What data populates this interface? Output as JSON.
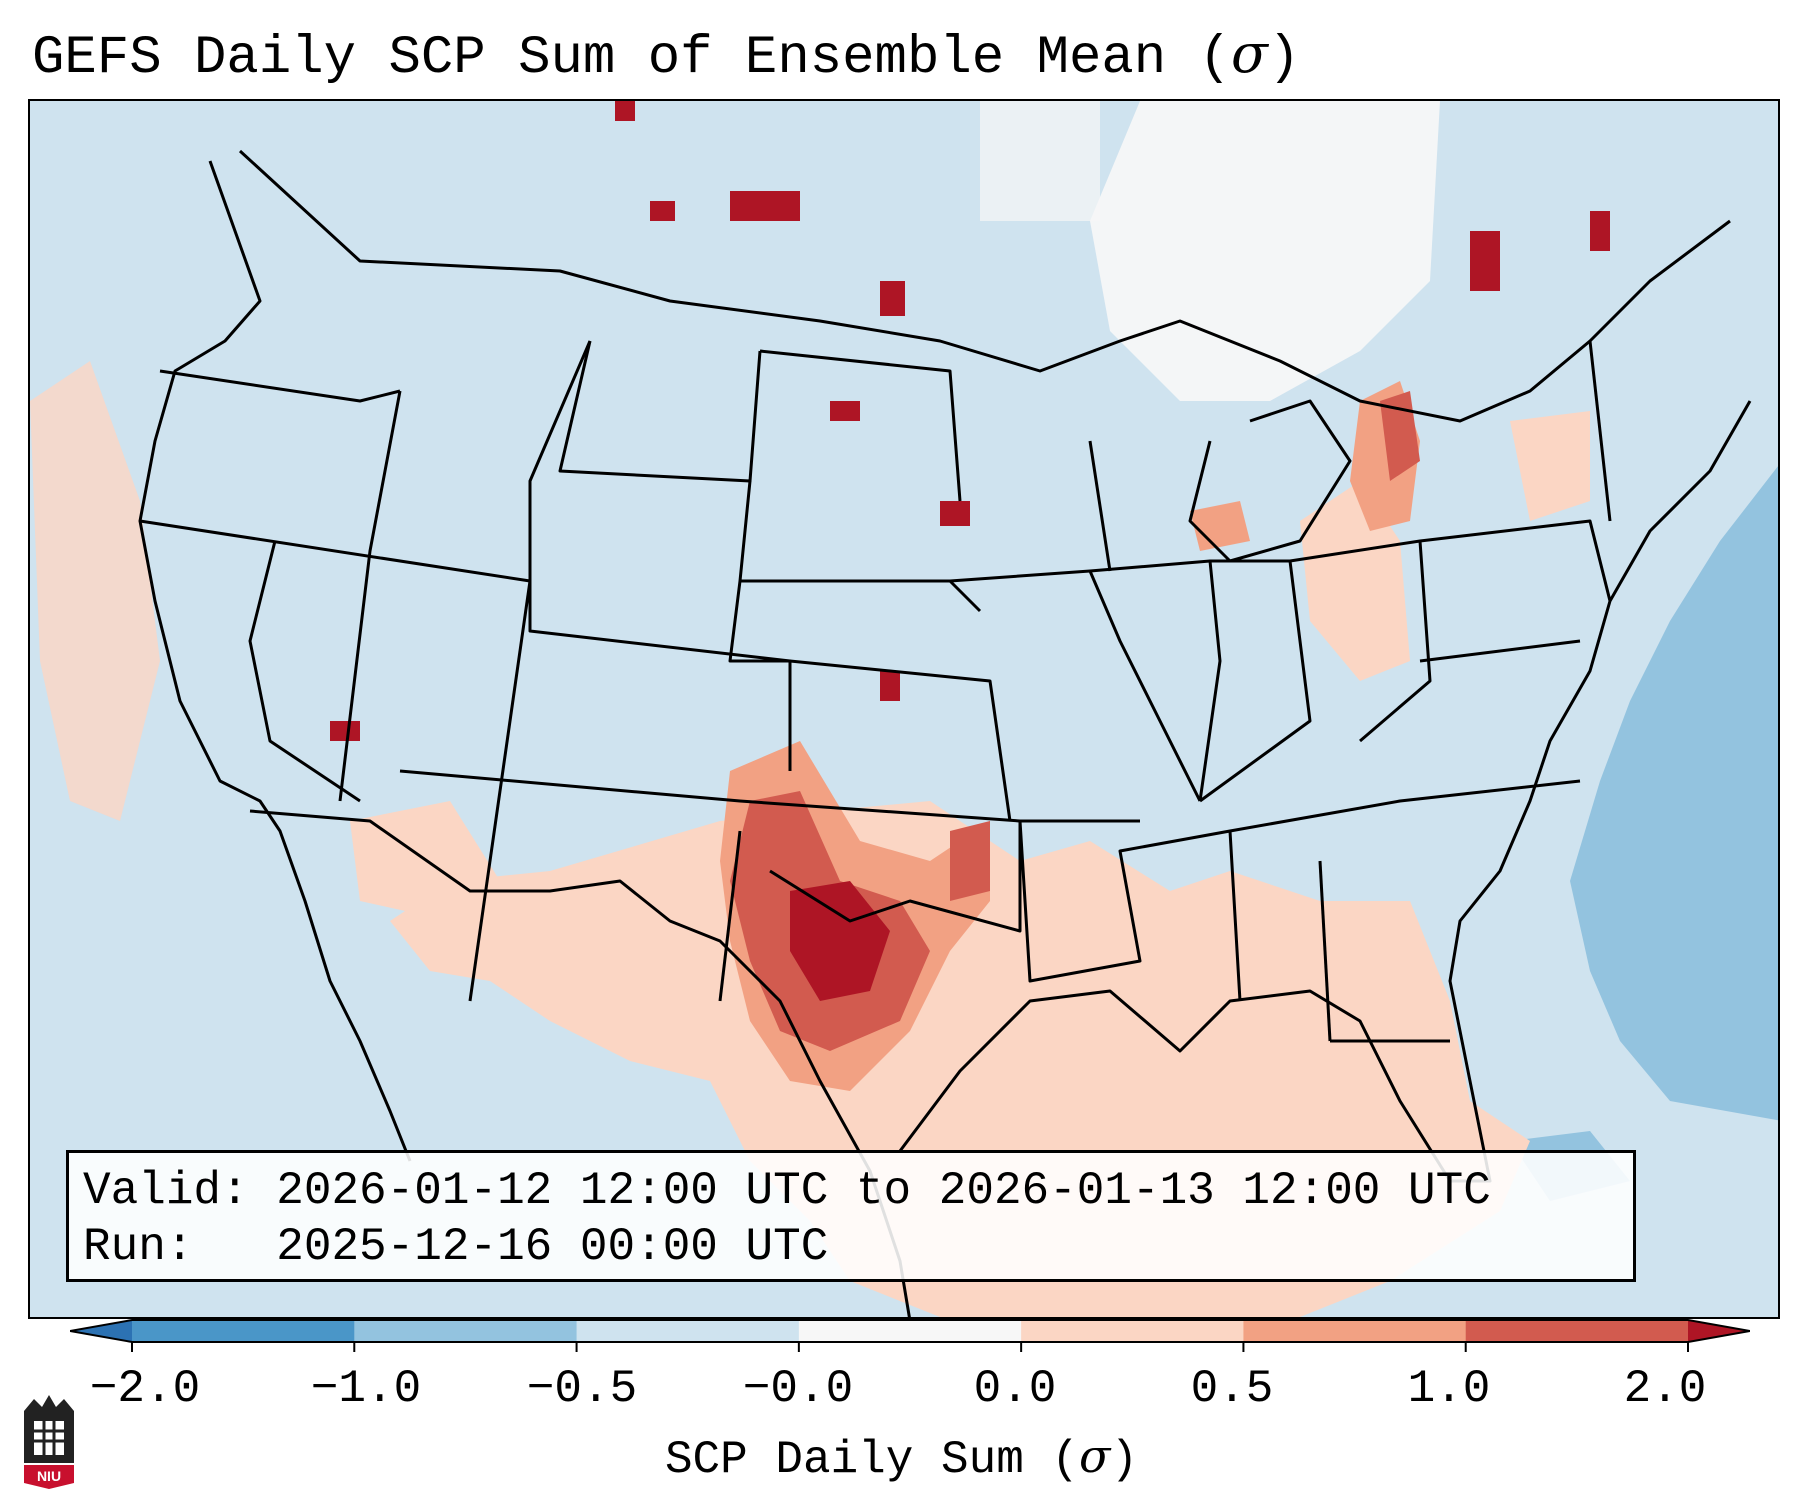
{
  "title": {
    "prefix": "GEFS Daily SCP Sum of Ensemble Mean (",
    "symbol": "σ",
    "suffix": ")"
  },
  "info": {
    "valid_line": "Valid: 2026-01-12 12:00 UTC to 2026-01-13 12:00 UTC",
    "run_line": "Run:   2025-12-16 00:00 UTC"
  },
  "colorbar": {
    "label_prefix": "SCP Daily Sum (",
    "label_symbol": "σ",
    "label_suffix": ")",
    "ticks": [
      "−2.0",
      "−1.0",
      "−0.5",
      "−0.0",
      "0.0",
      "0.5",
      "1.0",
      "2.0"
    ],
    "bins": [
      {
        "range": "< -2.0",
        "color": "#2c72b3"
      },
      {
        "range": "-2.0 to -1.0",
        "color": "#4a96c8"
      },
      {
        "range": "-1.0 to -0.5",
        "color": "#93c3df"
      },
      {
        "range": "-0.5 to -0.0",
        "color": "#cfe3ef"
      },
      {
        "range": "-0.0 to 0.0",
        "color": "#f7f7f7"
      },
      {
        "range": "0.0 to 0.5",
        "color": "#fbd6c4"
      },
      {
        "range": "0.5 to 1.0",
        "color": "#f2a183"
      },
      {
        "range": "1.0 to 2.0",
        "color": "#d25b4f"
      },
      {
        "range": "> 2.0",
        "color": "#ae1525"
      }
    ]
  },
  "logo": {
    "text": "NIU",
    "name": "niu-logo"
  },
  "colors": {
    "ocean": "#cfe3ef",
    "borders": "#000000",
    "box_border": "#000000"
  }
}
